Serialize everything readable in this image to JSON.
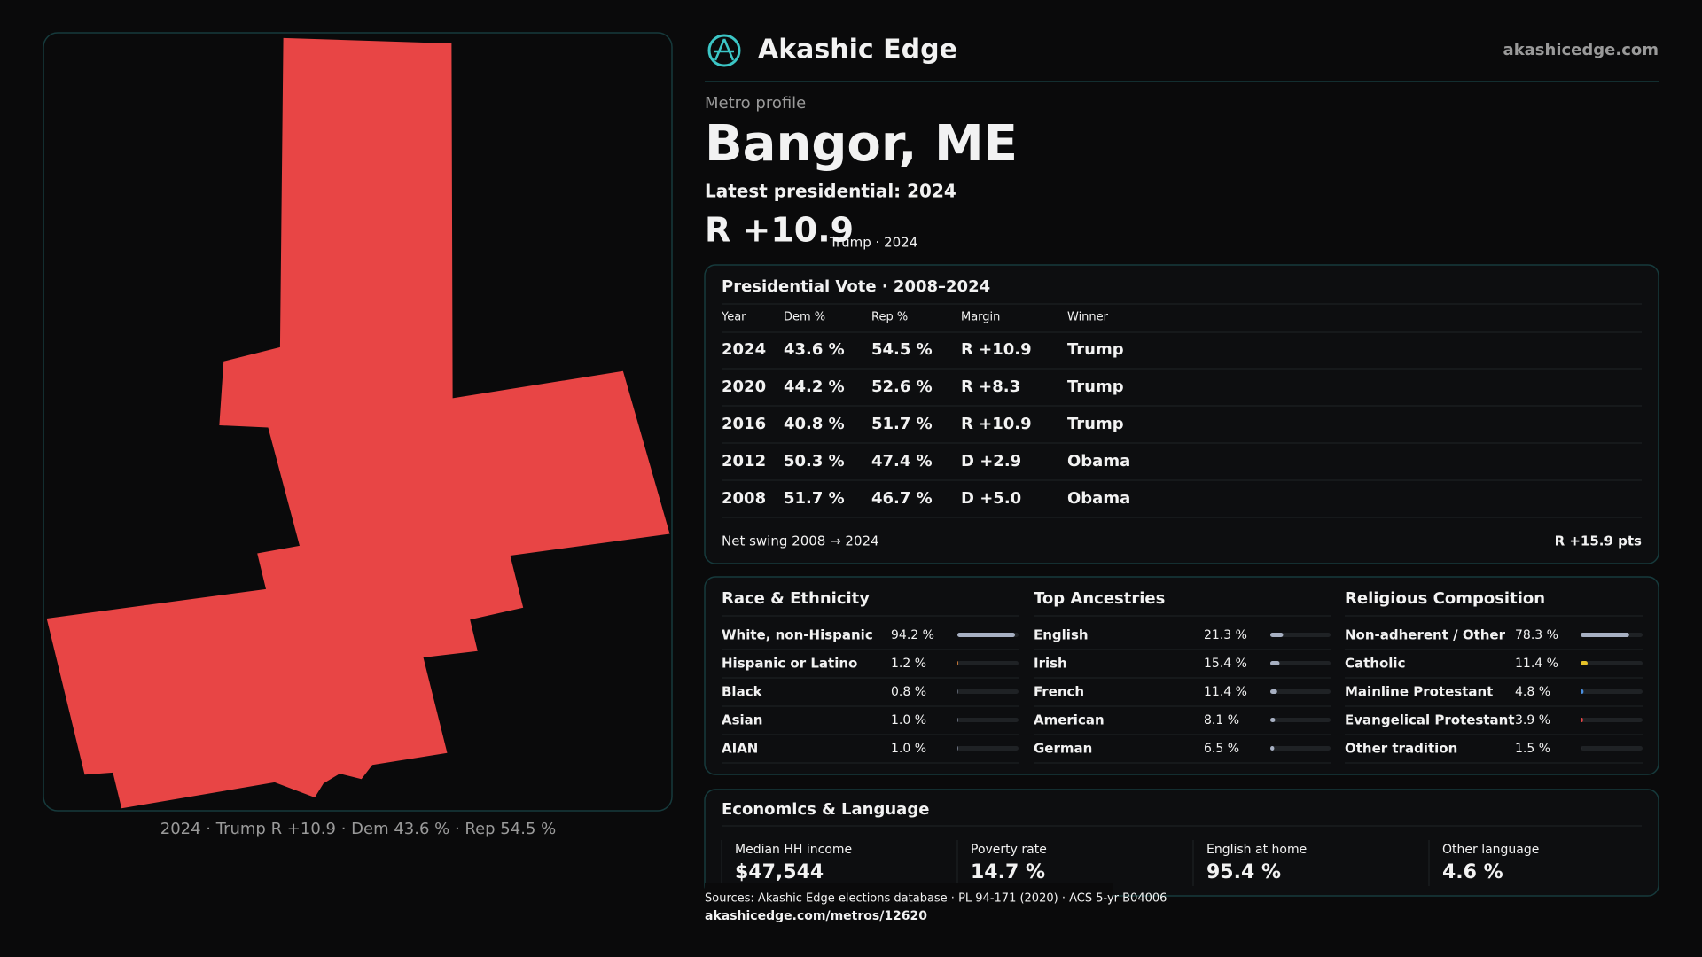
{
  "header": {
    "brand": "Akashic Edge",
    "url": "akashicedge.com"
  },
  "profile": {
    "eyebrow": "Metro profile",
    "title": "Bangor, ME",
    "subtitle": "Latest presidential: 2024",
    "margin": "R +10.9",
    "margin_note": "Trump · 2024"
  },
  "map": {
    "caption": "2024 · Trump R +10.9 · Dem 43.6 % · Rep 54.5 %"
  },
  "vote_table": {
    "title": "Presidential Vote · 2008–2024",
    "columns": [
      "Year",
      "Dem %",
      "Rep %",
      "Margin",
      "Winner"
    ],
    "rows": [
      [
        "2024",
        "43.6 %",
        "54.5 %",
        "R +10.9",
        "Trump"
      ],
      [
        "2020",
        "44.2 %",
        "52.6 %",
        "R +8.3",
        "Trump"
      ],
      [
        "2016",
        "40.8 %",
        "51.7 %",
        "R +10.9",
        "Trump"
      ],
      [
        "2012",
        "50.3 %",
        "47.4 %",
        "D +2.9",
        "Obama"
      ],
      [
        "2008",
        "51.7 %",
        "46.7 %",
        "D +5.0",
        "Obama"
      ]
    ],
    "footer_label": "Net swing 2008 → 2024",
    "footer_value": "R +15.9 pts"
  },
  "demographics": [
    {
      "title": "Race & Ethnicity",
      "rows": [
        {
          "label": "White, non-Hispanic",
          "value": 94.2,
          "value_label": "94.2 %",
          "color": "#a7b0c2"
        },
        {
          "label": "Hispanic or Latino",
          "value": 1.2,
          "value_label": "1.2 %",
          "color": "#e8883a"
        },
        {
          "label": "Black",
          "value": 0.8,
          "value_label": "0.8 %",
          "color": "#8b93a5"
        },
        {
          "label": "Asian",
          "value": 1.0,
          "value_label": "1.0 %",
          "color": "#8b93a5"
        },
        {
          "label": "AIAN",
          "value": 1.0,
          "value_label": "1.0 %",
          "color": "#8b93a5"
        }
      ]
    },
    {
      "title": "Top Ancestries",
      "rows": [
        {
          "label": "English",
          "value": 21.3,
          "value_label": "21.3 %",
          "color": "#a7b0c2"
        },
        {
          "label": "Irish",
          "value": 15.4,
          "value_label": "15.4 %",
          "color": "#a7b0c2"
        },
        {
          "label": "French",
          "value": 11.4,
          "value_label": "11.4 %",
          "color": "#a7b0c2"
        },
        {
          "label": "American",
          "value": 8.1,
          "value_label": "8.1 %",
          "color": "#a7b0c2"
        },
        {
          "label": "German",
          "value": 6.5,
          "value_label": "6.5 %",
          "color": "#a7b0c2"
        }
      ]
    },
    {
      "title": "Religious Composition",
      "rows": [
        {
          "label": "Non-adherent / Other",
          "value": 78.3,
          "value_label": "78.3 %",
          "color": "#a7b0c2"
        },
        {
          "label": "Catholic",
          "value": 11.4,
          "value_label": "11.4 %",
          "color": "#e6c229"
        },
        {
          "label": "Mainline Protestant",
          "value": 4.8,
          "value_label": "4.8 %",
          "color": "#4a8fe0"
        },
        {
          "label": "Evangelical Protestant",
          "value": 3.9,
          "value_label": "3.9 %",
          "color": "#e84545"
        },
        {
          "label": "Other tradition",
          "value": 1.5,
          "value_label": "1.5 %",
          "color": "#a7b0c2"
        }
      ]
    }
  ],
  "economics": {
    "title": "Economics & Language",
    "stats": [
      {
        "label": "Median HH income",
        "value": "$47,544"
      },
      {
        "label": "Poverty rate",
        "value": "14.7 %"
      },
      {
        "label": "English at home",
        "value": "95.4 %"
      },
      {
        "label": "Other language",
        "value": "4.6 %"
      }
    ]
  },
  "footer": {
    "sources": "Sources: Akashic Edge elections database · PL 94-171 (2020) · ACS 5-yr B04006",
    "link": "akashicedge.com/metros/12620"
  }
}
